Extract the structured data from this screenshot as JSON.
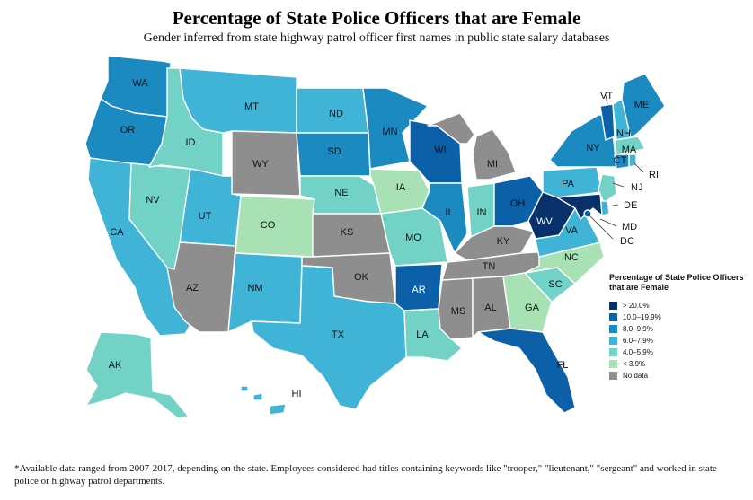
{
  "chart_data": {
    "type": "choropleth",
    "title": "Percentage of State Police Officers that are Female",
    "subtitle": "Gender inferred from state highway patrol officer first names in public state salary databases",
    "legend": {
      "title": "Percentage of State Police Officers that are Female",
      "bins": [
        {
          "key": "b1",
          "label": "> 20.0%",
          "color": "#08306b"
        },
        {
          "key": "b2",
          "label": "10.0–19.9%",
          "color": "#0b60a8"
        },
        {
          "key": "b3",
          "label": "8.0–9.9%",
          "color": "#1a8ac0"
        },
        {
          "key": "b4",
          "label": "6.0–7.9%",
          "color": "#40b4d6"
        },
        {
          "key": "b5",
          "label": "4.0–5.9%",
          "color": "#72d2c6"
        },
        {
          "key": "b6",
          "label": "< 3.9%",
          "color": "#a8e2b4"
        },
        {
          "key": "nd",
          "label": "No data",
          "color": "#8e8e8e"
        }
      ]
    },
    "states": {
      "WA": "b3",
      "OR": "b3",
      "CA": "b4",
      "ID": "b5",
      "NV": "b5",
      "MT": "b4",
      "WY": "nd",
      "UT": "b4",
      "CO": "b6",
      "AZ": "nd",
      "NM": "b4",
      "ND": "b4",
      "SD": "b3",
      "NE": "b5",
      "KS": "nd",
      "OK": "nd",
      "TX": "b4",
      "MN": "b3",
      "IA": "b6",
      "MO": "b5",
      "AR": "b2",
      "LA": "b5",
      "WI": "b2",
      "IL": "b3",
      "MI": "nd",
      "IN": "b5",
      "OH": "b2",
      "KY": "nd",
      "TN": "nd",
      "MS": "nd",
      "AL": "nd",
      "GA": "b6",
      "FL": "b2",
      "SC": "b5",
      "NC": "b6",
      "VA": "b4",
      "WV": "b1",
      "PA": "b4",
      "NY": "b3",
      "VT": "b2",
      "NH": "b4",
      "ME": "b3",
      "MA": "b5",
      "RI": "b4",
      "CT": "b3",
      "NJ": "b5",
      "DE": "b4",
      "MD": "b1",
      "DC": "b2",
      "AK": "b5",
      "HI": "b4"
    }
  },
  "footnote": "*Available data ranged from 2007-2017, depending on the state. Employees considered had titles containing keywords like \"trooper,\" \"lieutenant,\" \"sergeant\" and worked in state police or highway patrol departments."
}
